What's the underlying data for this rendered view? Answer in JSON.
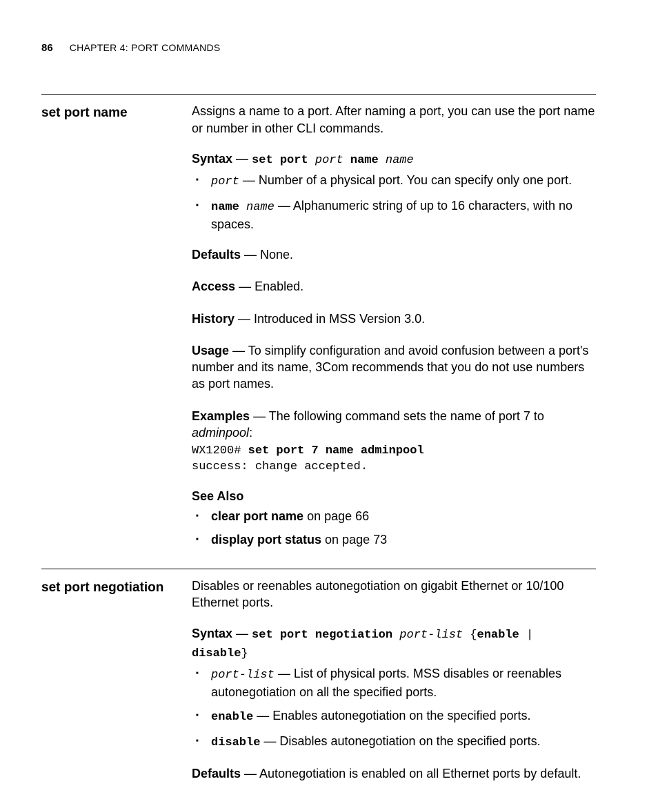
{
  "header": {
    "page_number": "86",
    "chapter_prefix": "C",
    "chapter_rest": "HAPTER",
    "chapter_num": " 4: ",
    "title_first": "P",
    "title_rest1": "ORT",
    "title_space": " ",
    "title_first2": "C",
    "title_rest2": "OMMANDS"
  },
  "section1": {
    "title": "set port name",
    "intro": "Assigns a name to a port. After naming a port, you can use the port name or number in other CLI commands.",
    "syntax_label": "Syntax",
    "syntax_sep": " — ",
    "syntax_code_bold1": "set port ",
    "syntax_code_ital1": "port",
    "syntax_code_bold2": " name ",
    "syntax_code_ital2": "name",
    "bullets": [
      {
        "lead_mono_ital": "port",
        "rest": " — Number of a physical port. You can specify only one port."
      },
      {
        "lead_mono_bold": "name ",
        "lead_mono_ital": "name",
        "rest": " — Alphanumeric string of up to 16 characters, with no spaces."
      }
    ],
    "defaults_label": "Defaults",
    "defaults_text": " — None.",
    "access_label": "Access",
    "access_text": " — Enabled.",
    "history_label": "History",
    "history_text": " — Introduced in MSS Version 3.0.",
    "usage_label": "Usage",
    "usage_text": " — To simplify configuration and avoid confusion between a port's number and its name, 3Com recommends that you do not use numbers as port names.",
    "examples_label": "Examples",
    "examples_text_pre": " — The following command sets the name of port 7 to ",
    "examples_ital": "adminpool",
    "examples_text_post": ":",
    "code_line1_plain": "WX1200# ",
    "code_line1_bold": "set port 7 name adminpool",
    "code_line2": "success: change accepted.",
    "see_also_label": "See Also",
    "see_also_items": [
      {
        "bold": "clear port name",
        "rest": " on page 66"
      },
      {
        "bold": "display port status",
        "rest": " on page 73"
      }
    ]
  },
  "section2": {
    "title": "set port negotiation",
    "intro": "Disables or reenables autonegotiation on gigabit Ethernet or 10/100 Ethernet ports.",
    "syntax_label": "Syntax",
    "syntax_sep": " — ",
    "syntax_code_bold1": "set port negotiation ",
    "syntax_code_ital1": "port-list",
    "syntax_code_plain1": " {",
    "syntax_code_bold2": "enable",
    "syntax_code_plain2": " | ",
    "syntax_code_bold3": "disable",
    "syntax_code_plain3": "}",
    "bullets": [
      {
        "lead_mono_ital": "port-list",
        "rest": " — List of physical ports. MSS disables or reenables autonegotiation on all the specified ports."
      },
      {
        "lead_mono_bold": "enable",
        "rest": " — Enables autonegotiation on the specified ports."
      },
      {
        "lead_mono_bold": "disable",
        "rest": " — Disables autonegotiation on the specified ports."
      }
    ],
    "defaults_label": "Defaults",
    "defaults_text": " — Autonegotiation is enabled on all Ethernet ports by default."
  }
}
